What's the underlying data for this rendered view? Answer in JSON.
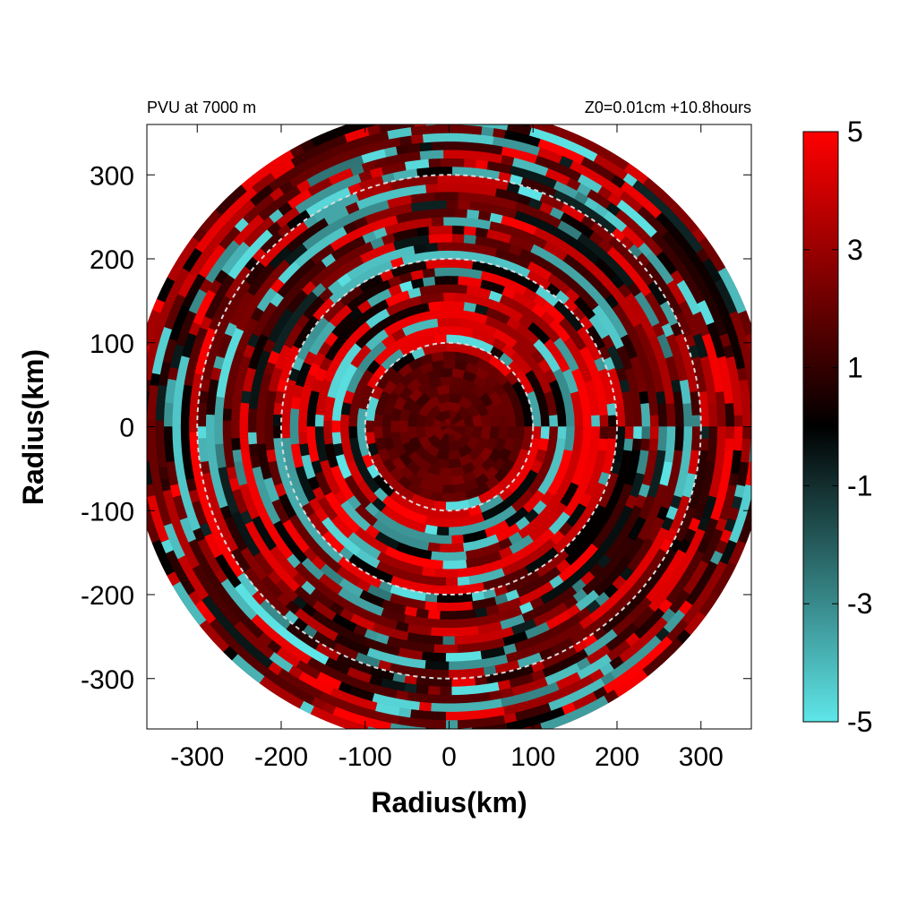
{
  "chart_data": {
    "type": "heatmap",
    "title_left": "PVU at  7000 m",
    "title_right": "Z0=0.01cm  +10.8hours",
    "xlabel": "Radius(km)",
    "ylabel": "Radius(km)",
    "xlim": [
      -360,
      360
    ],
    "ylim": [
      -360,
      360
    ],
    "x_ticks": [
      -300,
      -200,
      -100,
      0,
      100,
      200,
      300
    ],
    "y_ticks": [
      300,
      200,
      100,
      0,
      -100,
      -200,
      -300
    ],
    "grid": false,
    "domain_radius_km": 380,
    "reference_circles_km": [
      100,
      200,
      300
    ],
    "colorbar": {
      "min": -5,
      "max": 5,
      "ticks": [
        5,
        3,
        1,
        -1,
        -3,
        -5
      ],
      "colors": {
        "min_color": "#5ee6e8",
        "mid_color": "#000000",
        "max_color": "#ff0000"
      },
      "placement": "right"
    },
    "field_description_values": {
      "core_mean_pvu": 1.8,
      "inner_ring_peak_pvu": 5,
      "inner_ring_min_pvu": -5,
      "outer_band_range_pvu": [
        -5,
        5
      ]
    }
  }
}
